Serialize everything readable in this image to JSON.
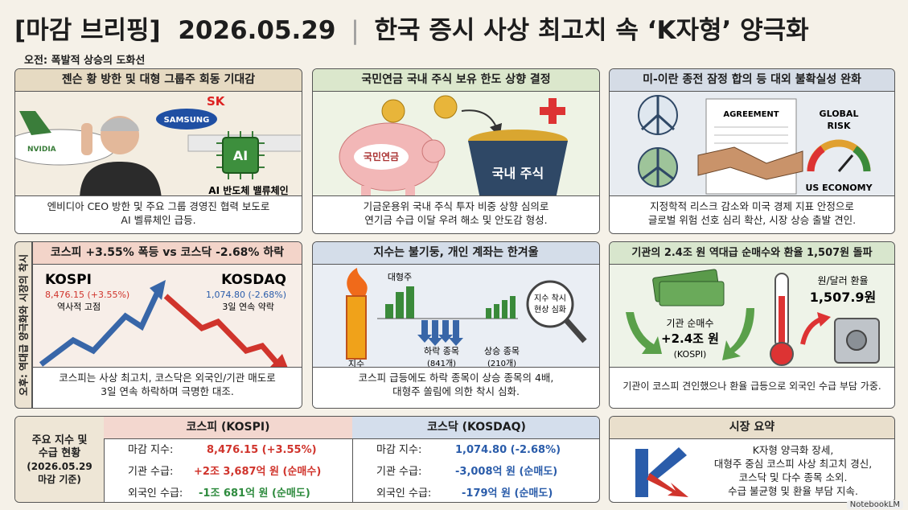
{
  "header": {
    "tag": "[마감 브리핑]",
    "date": "2026.05.29",
    "title": "한국 증시 사상 최고치 속 ‘K자형’ 양극화"
  },
  "morning": {
    "label": "오전: 폭발적 상승의 도화선",
    "panels": [
      {
        "title": "젠슨 황 방한 및 대형 그룹주 회동 기대감",
        "labels": [
          "NVIDIA",
          "SAMSUNG",
          "SK",
          "AI",
          "AI 반도체 밸류체인"
        ],
        "caption": [
          "엔비디아 CEO 방한 및 주요 그룹 경영진 협력 보도로",
          "AI 벨류체인 급등."
        ]
      },
      {
        "title": "국민연금 국내 주식 보유 한도 상향 결정",
        "labels": [
          "국민연금",
          "국내 주식"
        ],
        "caption": [
          "기금운용위 국내 주식 투자 비중 상향 심의로",
          "연기금 수급 이달 우려 해소 및 안도감 형성."
        ]
      },
      {
        "title": "미-이란 종전 잠정 합의 등 대외 불확실성 완화",
        "labels": [
          "AGREEMENT",
          "GLOBAL",
          "RISK",
          "US ECONOMY"
        ],
        "caption": [
          "지정학적 리스크 감소와 미국 경제 지표 안정으로",
          "글로벌 위험 선호 심리 확산, 시장 상승 출발 견인."
        ]
      }
    ]
  },
  "afternoon": {
    "label": "오후: 역대급 양극화와 시장의 착시",
    "panels": [
      {
        "title": "코스피 +3.55% 폭등 vs 코스닥 -2.68% 하락",
        "labels": [
          "KOSPI",
          "8,476.15 (+3.55%)",
          "역사적 고점",
          "KOSDAQ",
          "1,074.80 (-2.68%)",
          "3일 연속 약락"
        ],
        "caption": [
          "코스피는 사상 최고치, 코스닥은 외국인/기관 매도로",
          "3일 연속 하락하며 극명한 대조."
        ]
      },
      {
        "title": "지수는 불기둥, 개인 계좌는 한겨울",
        "labels": [
          "대형주",
          "지수",
          "하락 종목",
          "(841개)",
          "상승 종목",
          "(210개)",
          "지수 착시",
          "현상 심화"
        ],
        "caption": [
          "코스피 급등에도 하락 종목이 상승 종목의 4배,",
          "대형주 쏠림에 의한 착시 심화."
        ]
      },
      {
        "title": "기관의 2.4조 원 역대급 순매수와 환율 1,507원 돌파",
        "labels": [
          "기관 순매수",
          "+2.4조 원",
          "(KOSPI)",
          "원/달러 환율",
          "1,507.9원"
        ],
        "caption": [
          "기관이 코스피 견인했으나 환율 급등으로 외국인 수급 부담 가중."
        ]
      }
    ]
  },
  "table": {
    "caption": [
      "주요 지수 및",
      "수급 현황",
      "(2026.05.29",
      "마감 기준)"
    ],
    "columns": [
      {
        "title": "코스피 (KOSPI)",
        "rows": [
          [
            "마감 지수:",
            "8,476.15 (+3.55%)"
          ],
          [
            "기관 수급:",
            "+2조 3,687억 원 (순매수)"
          ],
          [
            "외국인 수급:",
            "-1조 681억 원 (순매도)"
          ]
        ]
      },
      {
        "title": "코스닥 (KOSDAQ)",
        "rows": [
          [
            "마감 지수:",
            "1,074.80 (-2.68%)"
          ],
          [
            "기관 수급:",
            "-3,008억 원 (순매도)"
          ],
          [
            "외국인 수급:",
            "-179억 원 (순매도)"
          ]
        ]
      }
    ]
  },
  "summary": {
    "title": "시장 요약",
    "lines": [
      "K자형 양극화 장세,",
      "대형주 중심 코스피 사상 최고치 경신,",
      "코스닥 및 다수 종목 소외.",
      "수급 불균형 및 환율 부담 지속."
    ]
  },
  "footer": "NotebookLM"
}
